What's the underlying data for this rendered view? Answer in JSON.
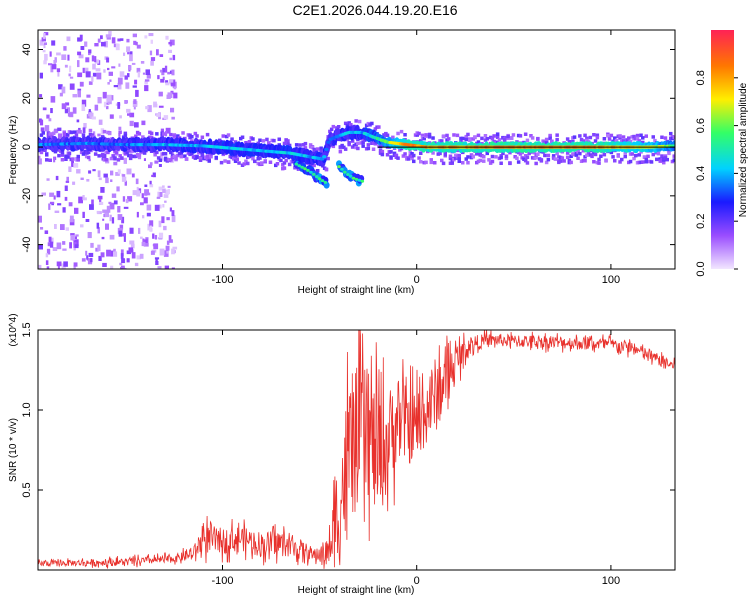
{
  "title": "C2E1.2026.044.19.20.E16",
  "chart_data": [
    {
      "type": "heatmap",
      "name": "spectrogram",
      "xlabel": "Height of straight line (km)",
      "ylabel": "Frequency (Hz)",
      "xlim": [
        -195,
        133
      ],
      "ylim": [
        -50,
        48
      ],
      "xticks": [
        -100,
        0,
        100
      ],
      "yticks": [
        -40,
        -20,
        0,
        20,
        40
      ],
      "ytick_labels": [
        "-40",
        "-20",
        "0",
        "20",
        "40"
      ],
      "colorbar": {
        "label": "Normalized spectral amplitude",
        "range": [
          0,
          1
        ],
        "ticks": [
          0.0,
          0.2,
          0.4,
          0.6,
          0.8
        ],
        "tick_labels": [
          "0.0",
          "0.2",
          "0.4",
          "0.6",
          "0.8"
        ],
        "colormap": [
          "#f2e6ff",
          "#9a4dff",
          "#1a1aff",
          "#00d2ff",
          "#33ff66",
          "#ffee00",
          "#ff7700",
          "#ff2255"
        ]
      },
      "ridge": {
        "x": [
          -195,
          -170,
          -150,
          -130,
          -110,
          -95,
          -80,
          -65,
          -55,
          -48,
          -45,
          -42,
          -35,
          -28,
          -22,
          -15,
          -5,
          5,
          20,
          40,
          60,
          80,
          100,
          120,
          133
        ],
        "y": [
          1,
          1.5,
          1,
          1,
          0.5,
          -0.5,
          -1.5,
          -2.5,
          -4,
          -5,
          3,
          4,
          6,
          6,
          4,
          2,
          1,
          0,
          0,
          0,
          0,
          0,
          0,
          0,
          0.5
        ],
        "amplitude": [
          0.35,
          0.35,
          0.35,
          0.4,
          0.4,
          0.45,
          0.4,
          0.45,
          0.4,
          0.4,
          0.35,
          0.35,
          0.4,
          0.4,
          0.5,
          0.6,
          0.85,
          0.8,
          0.8,
          0.85,
          0.85,
          0.85,
          0.8,
          0.7,
          0.55
        ]
      },
      "branches": [
        {
          "x": [
            -62,
            -55,
            -50,
            -46
          ],
          "y": [
            -7,
            -10,
            -13,
            -15
          ]
        },
        {
          "x": [
            -40,
            -36,
            -32,
            -28
          ],
          "y": [
            -8,
            -11,
            -13,
            -14
          ]
        }
      ],
      "reference_line": {
        "x": [
          -20,
          133
        ],
        "y": [
          0,
          0
        ]
      },
      "noise_region": {
        "x": [
          -195,
          -125
        ],
        "y": [
          -50,
          48
        ]
      }
    },
    {
      "type": "line",
      "name": "snr",
      "xlabel": "Height of straight line (km)",
      "ylabel": "SNR (10 * v/v)",
      "multiplier_label": "(x10^4)",
      "xlim": [
        -195,
        133
      ],
      "ylim": [
        0,
        1.5
      ],
      "xticks": [
        -100,
        0,
        100
      ],
      "yticks": [
        0.5,
        1.0,
        1.5
      ],
      "ytick_labels": [
        "0.5",
        "1.0",
        "1.5"
      ],
      "color": "#e8312c",
      "envelope": {
        "x": [
          -195,
          -150,
          -125,
          -115,
          -110,
          -100,
          -90,
          -80,
          -70,
          -60,
          -52,
          -45,
          -40,
          -35,
          -30,
          -25,
          -20,
          -15,
          -10,
          -5,
          0,
          5,
          10,
          15,
          20,
          25,
          30,
          40,
          50,
          60,
          80,
          100,
          110,
          120,
          133
        ],
        "y": [
          0.04,
          0.05,
          0.07,
          0.1,
          0.2,
          0.18,
          0.2,
          0.16,
          0.17,
          0.13,
          0.09,
          0.12,
          0.4,
          0.7,
          0.85,
          0.85,
          0.7,
          0.8,
          0.95,
          0.9,
          0.9,
          1.0,
          1.1,
          1.2,
          1.3,
          1.38,
          1.42,
          1.44,
          1.43,
          1.43,
          1.42,
          1.41,
          1.39,
          1.34,
          1.27
        ],
        "spread": [
          0.02,
          0.03,
          0.03,
          0.05,
          0.12,
          0.1,
          0.1,
          0.1,
          0.1,
          0.08,
          0.05,
          0.12,
          0.5,
          0.6,
          0.55,
          0.5,
          0.5,
          0.4,
          0.35,
          0.3,
          0.3,
          0.28,
          0.3,
          0.2,
          0.15,
          0.08,
          0.06,
          0.05,
          0.05,
          0.05,
          0.05,
          0.05,
          0.05,
          0.05,
          0.04
        ]
      }
    }
  ]
}
